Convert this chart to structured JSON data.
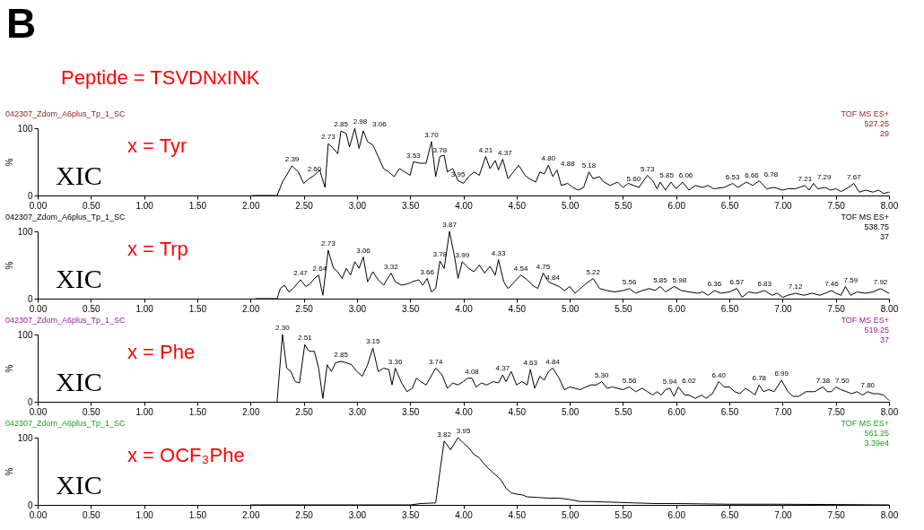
{
  "chart_data": [
    {
      "type": "line",
      "title": "B",
      "subtitle": "Peptide = TSVDNxINK",
      "ylabel": "%",
      "x": [
        2.02,
        2.25,
        2.3,
        2.39,
        2.45,
        2.5,
        2.55,
        2.6,
        2.65,
        2.7,
        2.73,
        2.78,
        2.82,
        2.85,
        2.9,
        2.93,
        2.98,
        3.02,
        3.06,
        3.1,
        3.15,
        3.2,
        3.25,
        3.3,
        3.35,
        3.4,
        3.45,
        3.5,
        3.53,
        3.6,
        3.65,
        3.7,
        3.74,
        3.78,
        3.82,
        3.85,
        3.9,
        3.95,
        4.0,
        4.05,
        4.1,
        4.15,
        4.21,
        4.25,
        4.3,
        4.33,
        4.37,
        4.42,
        4.47,
        4.52,
        4.58,
        4.62,
        4.68,
        4.72,
        4.76,
        4.8,
        4.84,
        4.88,
        4.92,
        4.98,
        5.03,
        5.08,
        5.13,
        5.18,
        5.22,
        5.28,
        5.32,
        5.38,
        5.45,
        5.5,
        5.55,
        5.6,
        5.65,
        5.73,
        5.78,
        5.82,
        5.85,
        5.9,
        5.95,
        6.0,
        6.06,
        6.12,
        6.18,
        6.25,
        6.3,
        6.35,
        6.45,
        6.53,
        6.58,
        6.66,
        6.72,
        6.78,
        6.85,
        6.92,
        7.0,
        7.05,
        7.12,
        7.21,
        7.25,
        7.29,
        7.33,
        7.4,
        7.45,
        7.5,
        7.55,
        7.62,
        7.67,
        7.72,
        7.78,
        7.85,
        7.9,
        7.95,
        8.0
      ],
      "series": [
        {
          "color": "#000000",
          "values": [
            0,
            0,
            20,
            44,
            35,
            18,
            25,
            30,
            38,
            12,
            77,
            70,
            62,
            96,
            92,
            72,
            100,
            70,
            96,
            80,
            75,
            58,
            40,
            35,
            28,
            40,
            35,
            30,
            50,
            48,
            48,
            80,
            28,
            58,
            60,
            35,
            40,
            22,
            18,
            28,
            35,
            30,
            58,
            40,
            52,
            38,
            54,
            25,
            35,
            45,
            30,
            25,
            20,
            35,
            32,
            45,
            28,
            38,
            15,
            18,
            12,
            8,
            12,
            35,
            25,
            28,
            20,
            15,
            20,
            12,
            18,
            15,
            12,
            30,
            22,
            10,
            20,
            8,
            20,
            10,
            20,
            8,
            15,
            12,
            15,
            10,
            12,
            18,
            12,
            20,
            15,
            22,
            10,
            12,
            8,
            10,
            10,
            15,
            8,
            18,
            10,
            12,
            8,
            10,
            6,
            12,
            18,
            5,
            8,
            5,
            8,
            3,
            5
          ]
        }
      ],
      "xlim": [
        0,
        8
      ],
      "ylim": [
        0,
        100
      ],
      "yticks": [
        0,
        100
      ],
      "xticks": [
        {
          "value": 0,
          "label": "0.00"
        },
        {
          "value": 0.5,
          "label": "0.50"
        },
        {
          "value": 1,
          "label": "1.00"
        },
        {
          "value": 1.5,
          "label": "1.50"
        },
        {
          "value": 2,
          "label": "2.00"
        },
        {
          "value": 2.5,
          "label": "2.50"
        },
        {
          "value": 3,
          "label": "3.00"
        },
        {
          "value": 3.5,
          "label": "3.50"
        },
        {
          "value": 4,
          "label": "4.00"
        },
        {
          "value": 4.5,
          "label": "4.50"
        },
        {
          "value": 5,
          "label": "5.00"
        },
        {
          "value": 5.5,
          "label": "5.50"
        },
        {
          "value": 6,
          "label": "6.00"
        },
        {
          "value": 6.5,
          "label": "6.50"
        },
        {
          "value": 7,
          "label": "7.00"
        },
        {
          "value": 7.5,
          "label": "7.50"
        },
        {
          "value": 8,
          "label": "8.00"
        }
      ],
      "grid": false,
      "annotations": [
        "042307_Zdom_A6plus_Tp_1_SC",
        "TOF MS ES+",
        "527.25",
        "29",
        "XIC",
        "x = Tyr",
        {
          "text": "2.39",
          "x": 2.39,
          "y": 44
        },
        {
          "text": "2.60",
          "x": 2.6,
          "y": 30
        },
        {
          "text": "2.73",
          "x": 2.73,
          "y": 77
        },
        {
          "text": "2.85",
          "x": 2.85,
          "y": 96
        },
        {
          "text": "2.98",
          "x": 2.98,
          "y": 100
        },
        {
          "text": "3.06",
          "x": 3.06,
          "y": 96
        },
        {
          "text": "3.53",
          "x": 3.53,
          "y": 50
        },
        {
          "text": "3.70",
          "x": 3.7,
          "y": 80
        },
        {
          "text": "3.78",
          "x": 3.78,
          "y": 58
        },
        {
          "text": "3.95",
          "x": 3.95,
          "y": 22
        },
        {
          "text": "4.21",
          "x": 4.21,
          "y": 58
        },
        {
          "text": "4.37",
          "x": 4.37,
          "y": 54
        },
        {
          "text": "4.80",
          "x": 4.8,
          "y": 45
        },
        {
          "text": "4.88",
          "x": 4.88,
          "y": 38
        },
        {
          "text": "5.18",
          "x": 5.18,
          "y": 35
        },
        {
          "text": "5.60",
          "x": 5.6,
          "y": 15
        },
        {
          "text": "5.73",
          "x": 5.73,
          "y": 30
        },
        {
          "text": "5.85",
          "x": 5.85,
          "y": 20
        },
        {
          "text": "6.06",
          "x": 6.06,
          "y": 20
        },
        {
          "text": "6.53",
          "x": 6.53,
          "y": 18
        },
        {
          "text": "6.66",
          "x": 6.66,
          "y": 20
        },
        {
          "text": "6.78",
          "x": 6.78,
          "y": 22
        },
        {
          "text": "7.21",
          "x": 7.21,
          "y": 15
        },
        {
          "text": "7.29",
          "x": 7.29,
          "y": 18
        },
        {
          "text": "7.67",
          "x": 7.67,
          "y": 18
        }
      ]
    },
    {
      "type": "line",
      "ylabel": "%",
      "x": [
        2.05,
        2.25,
        2.28,
        2.32,
        2.36,
        2.4,
        2.47,
        2.52,
        2.56,
        2.6,
        2.64,
        2.68,
        2.73,
        2.78,
        2.82,
        2.86,
        2.9,
        2.94,
        2.98,
        3.02,
        3.06,
        3.1,
        3.15,
        3.2,
        3.25,
        3.32,
        3.36,
        3.42,
        3.48,
        3.52,
        3.58,
        3.62,
        3.66,
        3.7,
        3.74,
        3.78,
        3.82,
        3.87,
        3.92,
        3.95,
        3.99,
        4.05,
        4.1,
        4.15,
        4.2,
        4.25,
        4.3,
        4.33,
        4.38,
        4.42,
        4.48,
        4.54,
        4.6,
        4.65,
        4.7,
        4.75,
        4.8,
        4.84,
        4.9,
        4.95,
        5.0,
        5.05,
        5.1,
        5.15,
        5.22,
        5.28,
        5.35,
        5.42,
        5.5,
        5.56,
        5.62,
        5.68,
        5.75,
        5.8,
        5.85,
        5.9,
        5.98,
        6.05,
        6.12,
        6.2,
        6.25,
        6.3,
        6.36,
        6.42,
        6.5,
        6.57,
        6.62,
        6.68,
        6.75,
        6.83,
        6.9,
        6.95,
        7.0,
        7.05,
        7.12,
        7.2,
        7.28,
        7.35,
        7.4,
        7.46,
        7.5,
        7.55,
        7.59,
        7.64,
        7.7,
        7.78,
        7.85,
        7.92,
        8.0
      ],
      "series": [
        {
          "color": "#000000",
          "values": [
            0,
            0,
            15,
            20,
            10,
            15,
            28,
            18,
            22,
            30,
            35,
            5,
            72,
            45,
            40,
            30,
            45,
            35,
            55,
            45,
            62,
            25,
            40,
            28,
            20,
            38,
            25,
            20,
            22,
            25,
            28,
            20,
            30,
            10,
            15,
            56,
            45,
            100,
            60,
            30,
            55,
            45,
            40,
            50,
            38,
            48,
            35,
            58,
            25,
            15,
            25,
            35,
            28,
            20,
            15,
            38,
            25,
            22,
            18,
            12,
            18,
            8,
            15,
            22,
            30,
            15,
            12,
            10,
            12,
            15,
            8,
            12,
            15,
            12,
            18,
            10,
            18,
            12,
            10,
            8,
            10,
            5,
            12,
            8,
            10,
            15,
            2,
            10,
            8,
            12,
            5,
            8,
            2,
            5,
            8,
            5,
            8,
            5,
            8,
            12,
            8,
            5,
            18,
            5,
            10,
            8,
            10,
            15,
            8
          ]
        }
      ],
      "xlim": [
        0,
        8
      ],
      "ylim": [
        0,
        100
      ],
      "yticks": [
        0,
        100
      ],
      "xticks": [
        {
          "value": 0,
          "label": "0.00"
        },
        {
          "value": 0.5,
          "label": "0.50"
        },
        {
          "value": 1,
          "label": "1.00"
        },
        {
          "value": 1.5,
          "label": "1.50"
        },
        {
          "value": 2,
          "label": "2.00"
        },
        {
          "value": 2.5,
          "label": "2.50"
        },
        {
          "value": 3,
          "label": "3.00"
        },
        {
          "value": 3.5,
          "label": "3.50"
        },
        {
          "value": 4,
          "label": "4.00"
        },
        {
          "value": 4.5,
          "label": "4.50"
        },
        {
          "value": 5,
          "label": "5.00"
        },
        {
          "value": 5.5,
          "label": "5.50"
        },
        {
          "value": 6,
          "label": "6.00"
        },
        {
          "value": 6.5,
          "label": "6.50"
        },
        {
          "value": 7,
          "label": "7.00"
        },
        {
          "value": 7.5,
          "label": "7.50"
        },
        {
          "value": 8,
          "label": "8.00"
        }
      ],
      "grid": false,
      "annotations": [
        "042307_Zdom_A6plus_Tp_1_SC",
        "TOF MS ES+",
        "538.75",
        "37",
        "XIC",
        "x = Trp",
        {
          "text": "2.47",
          "x": 2.47,
          "y": 28
        },
        {
          "text": "2.64",
          "x": 2.64,
          "y": 35
        },
        {
          "text": "2.73",
          "x": 2.73,
          "y": 72
        },
        {
          "text": "3.06",
          "x": 3.06,
          "y": 62
        },
        {
          "text": "3.32",
          "x": 3.32,
          "y": 38
        },
        {
          "text": "3.66",
          "x": 3.66,
          "y": 30
        },
        {
          "text": "3.78",
          "x": 3.78,
          "y": 56
        },
        {
          "text": "3.87",
          "x": 3.87,
          "y": 100
        },
        {
          "text": "3.99",
          "x": 3.99,
          "y": 55
        },
        {
          "text": "4.33",
          "x": 4.33,
          "y": 58
        },
        {
          "text": "4.54",
          "x": 4.54,
          "y": 35
        },
        {
          "text": "4.75",
          "x": 4.75,
          "y": 38
        },
        {
          "text": "4.84",
          "x": 4.84,
          "y": 22
        },
        {
          "text": "5.22",
          "x": 5.22,
          "y": 30
        },
        {
          "text": "5.56",
          "x": 5.56,
          "y": 15
        },
        {
          "text": "5.85",
          "x": 5.85,
          "y": 18
        },
        {
          "text": "5.98",
          "x": 5.98,
          "y": 18
        },
        {
          "text": "6.36",
          "x": 6.36,
          "y": 12
        },
        {
          "text": "6.57",
          "x": 6.57,
          "y": 15
        },
        {
          "text": "6.83",
          "x": 6.83,
          "y": 12
        },
        {
          "text": "7.12",
          "x": 7.12,
          "y": 8
        },
        {
          "text": "7.46",
          "x": 7.46,
          "y": 12
        },
        {
          "text": "7.59",
          "x": 7.59,
          "y": 18
        },
        {
          "text": "7.92",
          "x": 7.92,
          "y": 15
        }
      ]
    },
    {
      "type": "line",
      "ylabel": "%",
      "x": [
        2.25,
        2.3,
        2.34,
        2.38,
        2.42,
        2.46,
        2.51,
        2.55,
        2.6,
        2.64,
        2.68,
        2.72,
        2.76,
        2.8,
        2.85,
        2.9,
        2.95,
        3.0,
        3.05,
        3.1,
        3.15,
        3.2,
        3.25,
        3.3,
        3.33,
        3.36,
        3.42,
        3.47,
        3.52,
        3.56,
        3.6,
        3.65,
        3.74,
        3.8,
        3.85,
        3.9,
        3.95,
        4.0,
        4.04,
        4.08,
        4.12,
        4.17,
        4.22,
        4.28,
        4.33,
        4.37,
        4.4,
        4.45,
        4.5,
        4.55,
        4.6,
        4.63,
        4.67,
        4.72,
        4.76,
        4.8,
        4.84,
        4.9,
        4.95,
        5.0,
        5.05,
        5.1,
        5.15,
        5.2,
        5.25,
        5.3,
        5.35,
        5.4,
        5.45,
        5.5,
        5.56,
        5.62,
        5.68,
        5.73,
        5.78,
        5.82,
        5.86,
        5.9,
        5.94,
        5.98,
        6.02,
        6.08,
        6.12,
        6.18,
        6.24,
        6.28,
        6.34,
        6.4,
        6.45,
        6.5,
        6.55,
        6.6,
        6.65,
        6.7,
        6.74,
        6.78,
        6.82,
        6.87,
        6.92,
        6.99,
        7.05,
        7.1,
        7.15,
        7.22,
        7.3,
        7.38,
        7.42,
        7.46,
        7.5,
        7.55,
        7.6,
        7.65,
        7.7,
        7.75,
        7.8,
        7.85,
        7.9,
        7.95,
        8.0
      ],
      "series": [
        {
          "color": "#000000",
          "values": [
            0,
            100,
            50,
            45,
            30,
            28,
            85,
            75,
            75,
            50,
            5,
            55,
            45,
            58,
            60,
            58,
            55,
            45,
            38,
            55,
            80,
            45,
            50,
            48,
            25,
            50,
            28,
            15,
            20,
            35,
            30,
            25,
            50,
            40,
            20,
            28,
            25,
            30,
            35,
            35,
            22,
            28,
            25,
            30,
            28,
            40,
            30,
            45,
            25,
            30,
            25,
            48,
            20,
            38,
            32,
            45,
            50,
            35,
            18,
            22,
            20,
            18,
            22,
            25,
            25,
            30,
            20,
            22,
            20,
            18,
            22,
            15,
            20,
            15,
            10,
            15,
            10,
            18,
            20,
            8,
            22,
            10,
            10,
            5,
            10,
            5,
            12,
            30,
            22,
            22,
            15,
            12,
            20,
            15,
            10,
            25,
            15,
            18,
            15,
            32,
            15,
            8,
            8,
            15,
            15,
            22,
            15,
            15,
            22,
            18,
            15,
            12,
            15,
            10,
            15,
            12,
            12,
            10,
            2
          ]
        }
      ],
      "xlim": [
        0,
        8
      ],
      "ylim": [
        0,
        100
      ],
      "yticks": [
        0,
        100
      ],
      "xticks": [
        {
          "value": 0,
          "label": "0.00"
        },
        {
          "value": 0.5,
          "label": "0.50"
        },
        {
          "value": 1,
          "label": "1.00"
        },
        {
          "value": 1.5,
          "label": "1.50"
        },
        {
          "value": 2,
          "label": "2.00"
        },
        {
          "value": 2.5,
          "label": "2.50"
        },
        {
          "value": 3,
          "label": "3.00"
        },
        {
          "value": 3.5,
          "label": "3.50"
        },
        {
          "value": 4,
          "label": "4.00"
        },
        {
          "value": 4.5,
          "label": "4.50"
        },
        {
          "value": 5,
          "label": "5.00"
        },
        {
          "value": 5.5,
          "label": "5.50"
        },
        {
          "value": 6,
          "label": "6.00"
        },
        {
          "value": 6.5,
          "label": "6.50"
        },
        {
          "value": 7,
          "label": "7.00"
        },
        {
          "value": 7.5,
          "label": "7.50"
        },
        {
          "value": 8,
          "label": "8.00"
        }
      ],
      "grid": false,
      "annotations": [
        "042307_Zdom_A6plus_Tp_1_SC",
        "TOF MS ES+",
        "519.25",
        "37",
        "XIC",
        "x = Phe",
        {
          "text": "2.30",
          "x": 2.3,
          "y": 100
        },
        {
          "text": "2.51",
          "x": 2.51,
          "y": 85
        },
        {
          "text": "2.85",
          "x": 2.85,
          "y": 60
        },
        {
          "text": "3.15",
          "x": 3.15,
          "y": 80
        },
        {
          "text": "3.36",
          "x": 3.36,
          "y": 50
        },
        {
          "text": "3.74",
          "x": 3.74,
          "y": 50
        },
        {
          "text": "4.08",
          "x": 4.08,
          "y": 35
        },
        {
          "text": "4.37",
          "x": 4.37,
          "y": 40
        },
        {
          "text": "4.63",
          "x": 4.63,
          "y": 48
        },
        {
          "text": "4.84",
          "x": 4.84,
          "y": 50
        },
        {
          "text": "5.30",
          "x": 5.3,
          "y": 30
        },
        {
          "text": "5.56",
          "x": 5.56,
          "y": 22
        },
        {
          "text": "5.94",
          "x": 5.94,
          "y": 20
        },
        {
          "text": "6.02",
          "x": 6.02,
          "y": 22
        },
        {
          "text": "6.40",
          "x": 6.4,
          "y": 30
        },
        {
          "text": "6.78",
          "x": 6.78,
          "y": 25
        },
        {
          "text": "6.99",
          "x": 6.99,
          "y": 32
        },
        {
          "text": "7.38",
          "x": 7.38,
          "y": 22
        },
        {
          "text": "7.50",
          "x": 7.5,
          "y": 22
        },
        {
          "text": "7.80",
          "x": 7.8,
          "y": 15
        }
      ]
    },
    {
      "type": "line",
      "ylabel": "%",
      "x": [
        2.0,
        3.5,
        3.6,
        3.74,
        3.78,
        3.82,
        3.88,
        3.95,
        4.0,
        4.05,
        4.1,
        4.15,
        4.2,
        4.25,
        4.3,
        4.35,
        4.4,
        4.45,
        4.5,
        4.55,
        4.6,
        4.7,
        4.8,
        4.9,
        5.0,
        5.1,
        5.2,
        5.4,
        5.6,
        5.8,
        6.0,
        6.5,
        7.0,
        8.0
      ],
      "series": [
        {
          "color": "#000000",
          "values": [
            0,
            0,
            2,
            3,
            50,
            95,
            82,
            100,
            92,
            85,
            75,
            70,
            60,
            52,
            45,
            38,
            25,
            18,
            16,
            15,
            12,
            11,
            10,
            10,
            8,
            5,
            5,
            4,
            3,
            2,
            2,
            1,
            1,
            0
          ]
        }
      ],
      "xlim": [
        0,
        8
      ],
      "ylim": [
        0,
        100
      ],
      "yticks": [
        0,
        100
      ],
      "xticks": [
        {
          "value": 0,
          "label": "0.00"
        },
        {
          "value": 0.5,
          "label": "0.50"
        },
        {
          "value": 1,
          "label": "1.00"
        },
        {
          "value": 1.5,
          "label": "1.50"
        },
        {
          "value": 2,
          "label": "2.00"
        },
        {
          "value": 2.5,
          "label": "2.50"
        },
        {
          "value": 3,
          "label": "3.00"
        },
        {
          "value": 3.5,
          "label": "3.50"
        },
        {
          "value": 4,
          "label": "4.00"
        },
        {
          "value": 4.5,
          "label": "4.50"
        },
        {
          "value": 5,
          "label": "5.00"
        },
        {
          "value": 5.5,
          "label": "5.50"
        },
        {
          "value": 6,
          "label": "6.00"
        },
        {
          "value": 6.5,
          "label": "6.50"
        },
        {
          "value": 7,
          "label": "7.00"
        },
        {
          "value": 7.5,
          "label": "7.50"
        },
        {
          "value": 8,
          "label": "8.00"
        }
      ],
      "grid": false,
      "annotations": [
        "042307_Zdom_A6plus_Tp_1_SC",
        "TOF MS ES+",
        "561.25",
        "3.39e4",
        "XIC",
        "x = OCF₃Phe",
        {
          "text": "3.82",
          "x": 3.82,
          "y": 95
        },
        {
          "text": "3.95",
          "x": 3.95,
          "y": 100
        }
      ]
    }
  ]
}
